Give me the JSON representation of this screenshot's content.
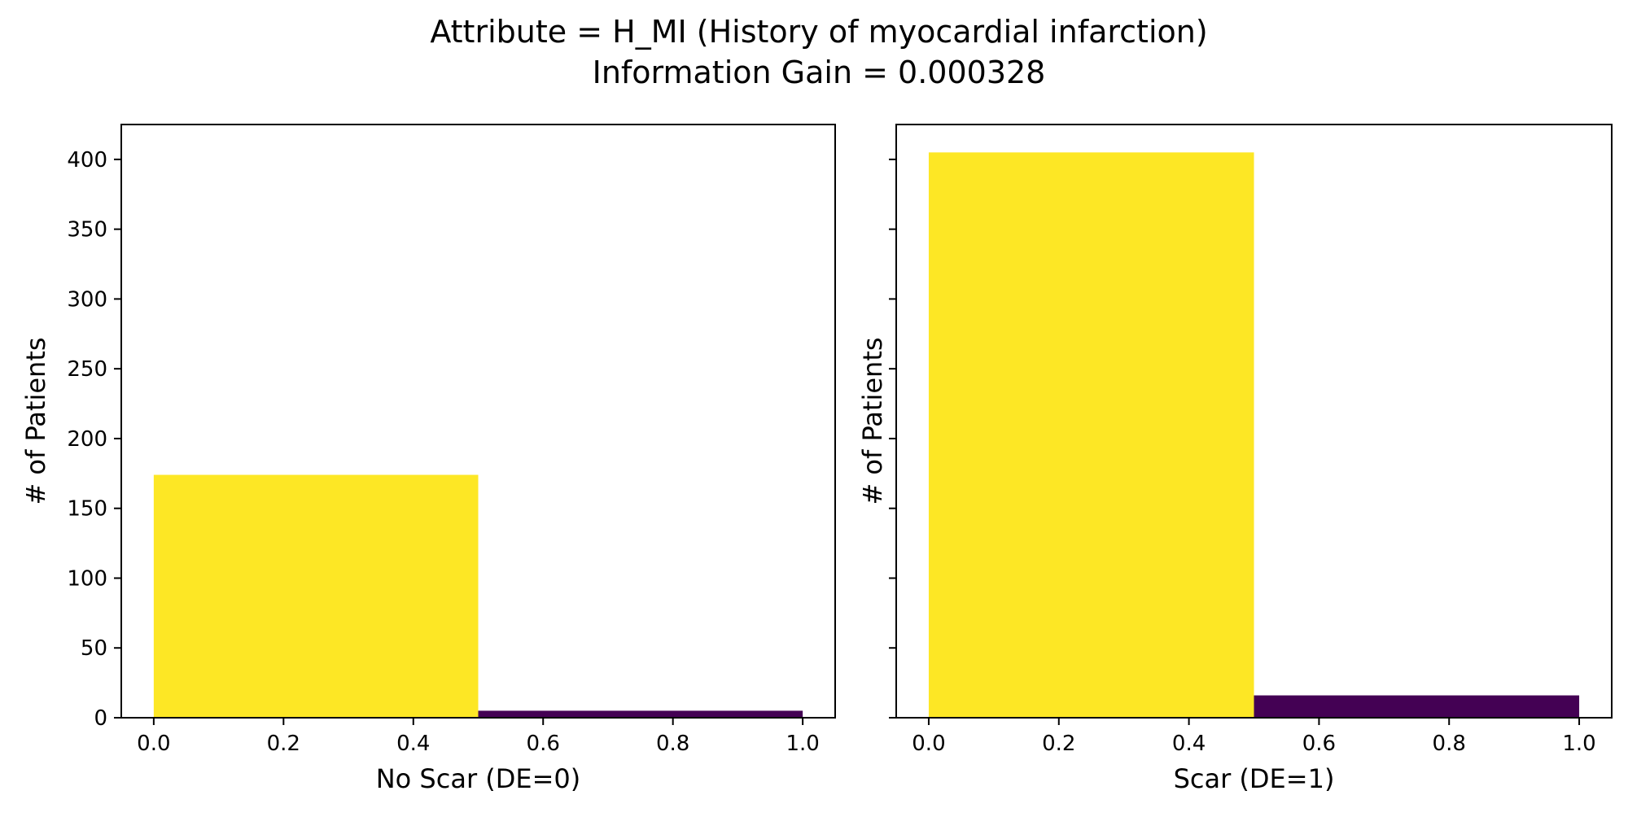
{
  "figure": {
    "title_line1": "Attribute = H_MI (History of myocardial infarction)",
    "title_line2": "Information Gain = 0.000328"
  },
  "chart_data": [
    {
      "type": "bar",
      "xlabel": "No Scar (DE=0)",
      "ylabel": "# of Patients",
      "xlim": [
        -0.05,
        1.05
      ],
      "ylim": [
        0,
        425
      ],
      "xticks": [
        0.0,
        0.2,
        0.4,
        0.6,
        0.8,
        1.0
      ],
      "xtick_labels": [
        "0.0",
        "0.2",
        "0.4",
        "0.6",
        "0.8",
        "1.0"
      ],
      "yticks": [
        0,
        50,
        100,
        150,
        200,
        250,
        300,
        350,
        400
      ],
      "ytick_labels": [
        "0",
        "50",
        "100",
        "150",
        "200",
        "250",
        "300",
        "350",
        "400"
      ],
      "bins": [
        {
          "x0": 0.0,
          "x1": 0.5,
          "value": 174,
          "color": "#fde725"
        },
        {
          "x0": 0.5,
          "x1": 1.0,
          "value": 5,
          "color": "#440154"
        }
      ],
      "grid": false,
      "show_y_tick_labels": true
    },
    {
      "type": "bar",
      "xlabel": "Scar (DE=1)",
      "ylabel": "# of Patients",
      "xlim": [
        -0.05,
        1.05
      ],
      "ylim": [
        0,
        425
      ],
      "xticks": [
        0.0,
        0.2,
        0.4,
        0.6,
        0.8,
        1.0
      ],
      "xtick_labels": [
        "0.0",
        "0.2",
        "0.4",
        "0.6",
        "0.8",
        "1.0"
      ],
      "yticks": [
        0,
        50,
        100,
        150,
        200,
        250,
        300,
        350,
        400
      ],
      "ytick_labels": [],
      "bins": [
        {
          "x0": 0.0,
          "x1": 0.5,
          "value": 405,
          "color": "#fde725"
        },
        {
          "x0": 0.5,
          "x1": 1.0,
          "value": 16,
          "color": "#440154"
        }
      ],
      "grid": false,
      "show_y_tick_labels": false
    }
  ]
}
